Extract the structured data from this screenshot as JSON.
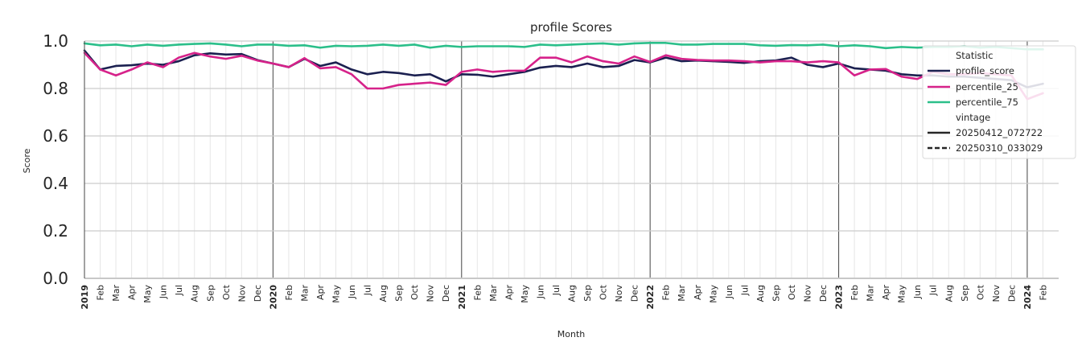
{
  "chart_data": {
    "type": "line",
    "title": "profile Scores",
    "xlabel": "Month",
    "ylabel": "Score",
    "ylim": [
      0.0,
      1.0
    ],
    "yticks": [
      "0.0",
      "0.2",
      "0.4",
      "0.6",
      "0.8",
      "1.0"
    ],
    "grid": true,
    "legend_position": "top-right",
    "month_labels": [
      "2019",
      "Feb",
      "Mar",
      "Apr",
      "May",
      "Jun",
      "Jul",
      "Aug",
      "Sep",
      "Oct",
      "Nov",
      "Dec",
      "2020",
      "Feb",
      "Mar",
      "Apr",
      "May",
      "Jun",
      "Jul",
      "Aug",
      "Sep",
      "Oct",
      "Nov",
      "Dec",
      "2021",
      "Feb",
      "Mar",
      "Apr",
      "May",
      "Jun",
      "Jul",
      "Aug",
      "Sep",
      "Oct",
      "Nov",
      "Dec",
      "2022",
      "Feb",
      "Mar",
      "Apr",
      "May",
      "Jun",
      "Jul",
      "Aug",
      "Sep",
      "Oct",
      "Nov",
      "Dec",
      "2023",
      "Feb",
      "Mar",
      "Apr",
      "May",
      "Jun",
      "Jul",
      "Aug",
      "Sep",
      "Oct",
      "Nov",
      "Dec",
      "2024",
      "Feb"
    ],
    "year_markers": [
      "2020",
      "2021",
      "2022",
      "2023",
      "2024"
    ],
    "legend": {
      "statistic_title": "Statistic",
      "vintage_title": "vintage",
      "vintages": [
        {
          "name": "20250412_072722",
          "style": "solid"
        },
        {
          "name": "20250310_033029",
          "style": "dashed"
        }
      ]
    },
    "series": [
      {
        "name": "profile_score",
        "color": "#1b2050",
        "values": [
          0.96,
          0.88,
          0.895,
          0.898,
          0.905,
          0.9,
          0.915,
          0.94,
          0.948,
          0.943,
          0.945,
          0.92,
          0.905,
          0.89,
          0.925,
          0.895,
          0.91,
          0.88,
          0.86,
          0.87,
          0.865,
          0.855,
          0.86,
          0.83,
          0.86,
          0.858,
          0.85,
          0.86,
          0.87,
          0.888,
          0.895,
          0.89,
          0.905,
          0.89,
          0.895,
          0.92,
          0.91,
          0.93,
          0.915,
          0.918,
          0.915,
          0.912,
          0.908,
          0.915,
          0.918,
          0.93,
          0.9,
          0.89,
          0.905,
          0.885,
          0.88,
          0.875,
          0.86,
          0.855,
          0.855,
          0.85,
          0.85,
          0.845,
          0.84,
          0.835,
          0.805,
          0.82
        ]
      },
      {
        "name": "percentile_25",
        "color": "#d6228a",
        "values": [
          0.95,
          0.88,
          0.855,
          0.88,
          0.91,
          0.89,
          0.93,
          0.95,
          0.935,
          0.925,
          0.938,
          0.918,
          0.905,
          0.89,
          0.928,
          0.885,
          0.89,
          0.86,
          0.8,
          0.8,
          0.815,
          0.82,
          0.825,
          0.815,
          0.87,
          0.88,
          0.87,
          0.875,
          0.875,
          0.93,
          0.93,
          0.91,
          0.935,
          0.915,
          0.905,
          0.935,
          0.912,
          0.94,
          0.925,
          0.92,
          0.918,
          0.918,
          0.915,
          0.91,
          0.915,
          0.915,
          0.91,
          0.915,
          0.91,
          0.855,
          0.88,
          0.882,
          0.85,
          0.84,
          0.87,
          0.86,
          0.86,
          0.865,
          0.86,
          0.855,
          0.755,
          0.78
        ]
      },
      {
        "name": "percentile_75",
        "color": "#2bbf8a",
        "values": [
          0.99,
          0.982,
          0.985,
          0.978,
          0.985,
          0.98,
          0.985,
          0.988,
          0.99,
          0.985,
          0.978,
          0.985,
          0.985,
          0.98,
          0.982,
          0.972,
          0.98,
          0.978,
          0.98,
          0.985,
          0.98,
          0.985,
          0.972,
          0.98,
          0.975,
          0.978,
          0.978,
          0.978,
          0.975,
          0.985,
          0.982,
          0.985,
          0.988,
          0.99,
          0.985,
          0.99,
          0.992,
          0.992,
          0.985,
          0.985,
          0.988,
          0.988,
          0.988,
          0.982,
          0.98,
          0.983,
          0.982,
          0.985,
          0.978,
          0.982,
          0.978,
          0.97,
          0.975,
          0.972,
          0.975,
          0.975,
          0.978,
          0.972,
          0.975,
          0.97,
          0.965,
          0.965
        ]
      }
    ]
  }
}
